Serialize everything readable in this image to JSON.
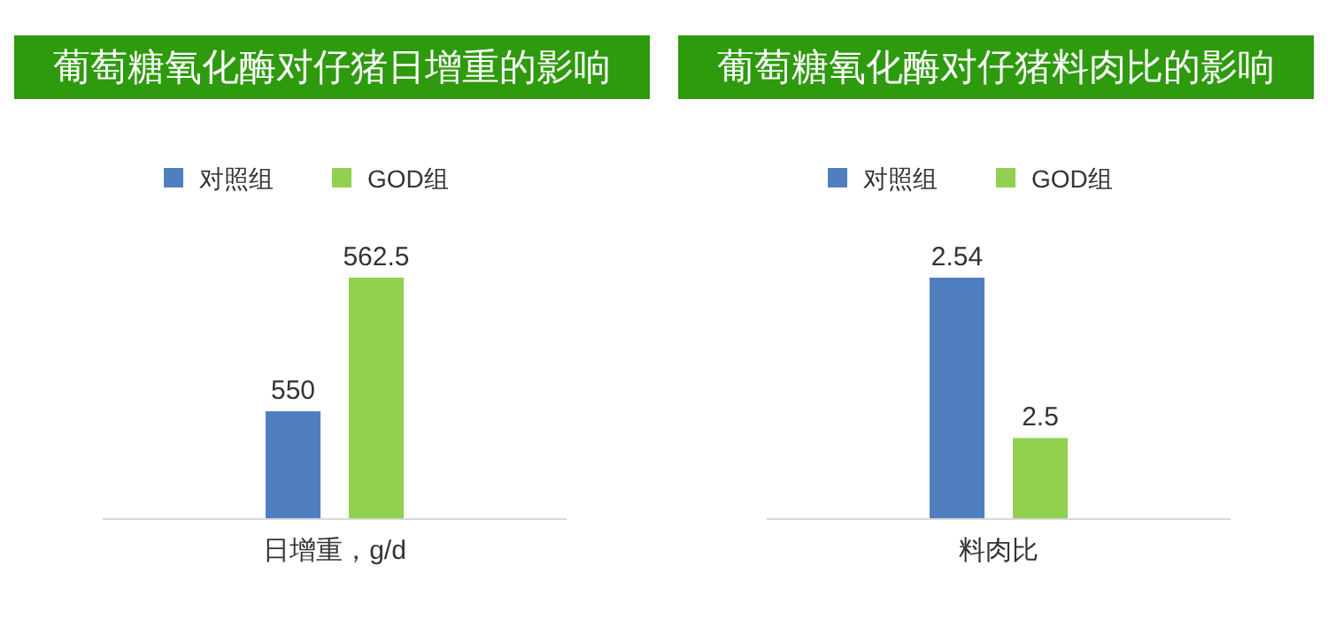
{
  "chart_data": [
    {
      "type": "bar",
      "title": "葡萄糖氧化酶对仔猪日增重的影响",
      "categories": [
        "日增重，g/d"
      ],
      "legend": "top",
      "data_labels": true,
      "ylim": [
        540,
        562.5
      ],
      "series": [
        {
          "name": "对照组",
          "color": "#4f7fbf",
          "values": [
            550
          ]
        },
        {
          "name": "GOD组",
          "color": "#92d050",
          "values": [
            562.5
          ]
        }
      ]
    },
    {
      "type": "bar",
      "title": "葡萄糖氧化酶对仔猪料肉比的影响",
      "categories": [
        "料肉比"
      ],
      "legend": "top",
      "data_labels": true,
      "ylim": [
        2.48,
        2.54
      ],
      "series": [
        {
          "name": "对照组",
          "color": "#4f7fbf",
          "values": [
            2.54
          ]
        },
        {
          "name": "GOD组",
          "color": "#92d050",
          "values": [
            2.5
          ]
        }
      ]
    }
  ]
}
